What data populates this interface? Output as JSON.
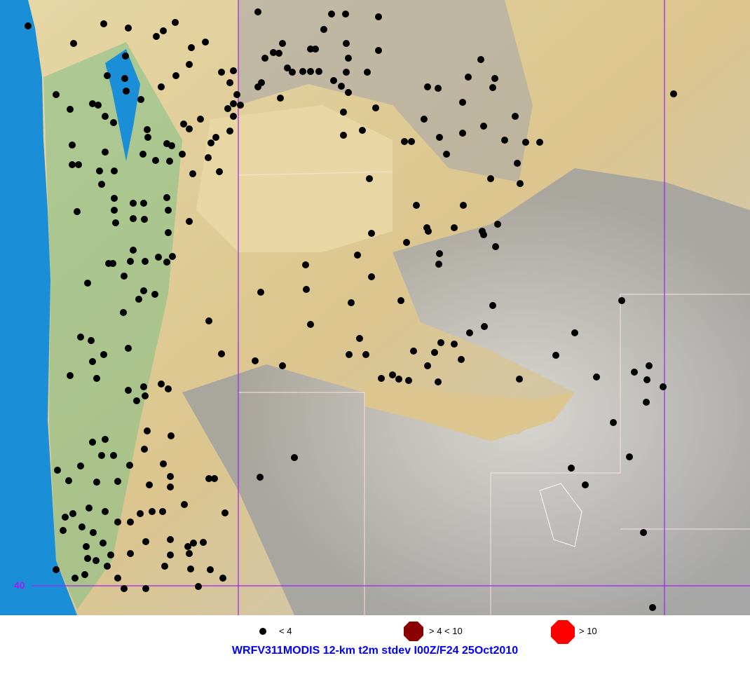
{
  "map": {
    "latitude_label": "40",
    "colors": {
      "ocean": "#1a8fd8",
      "lowland": "#e8d39c",
      "mountain": "#b4b4b4",
      "forest": "#6fb37a",
      "grid": "#a020f0",
      "station": "#000000"
    }
  },
  "legend": [
    {
      "label": "< 4",
      "color": "#000000",
      "icon": "small-black-dot"
    },
    {
      "label": "> 4 < 10",
      "color": "#8b0000",
      "icon": "dark-red-octagon"
    },
    {
      "label": "> 10",
      "color": "#ff0000",
      "icon": "red-octagon"
    }
  ],
  "title": "WRFV311MODIS 12-km t2m stdev I00Z/F24 25Oct2010"
}
